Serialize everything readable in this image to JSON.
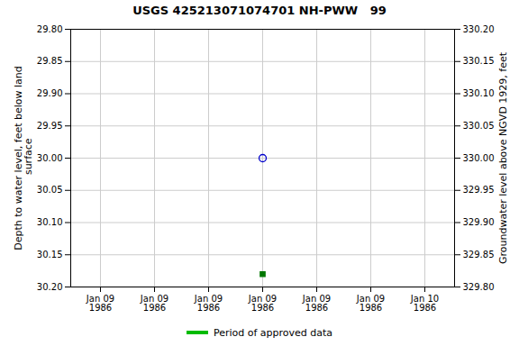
{
  "chart_data": {
    "type": "scatter",
    "title": "USGS 425213071074701 NH-PWW   99",
    "y_label": "Depth to water level, feet below land\n surface",
    "y2_label": "Groundwater level above NGVD 1929, feet",
    "categories": [
      "Jan 09\n1986",
      "Jan 09\n1986",
      "Jan 09\n1986",
      "Jan 09\n1986",
      "Jan 09\n1986",
      "Jan 09\n1986",
      "Jan 10\n1986"
    ],
    "ylim": [
      30.2,
      29.8
    ],
    "yticks": [
      {
        "value": 29.8,
        "label": "29.80"
      },
      {
        "value": 29.85,
        "label": "29.85"
      },
      {
        "value": 29.9,
        "label": "29.90"
      },
      {
        "value": 29.95,
        "label": "29.95"
      },
      {
        "value": 30.0,
        "label": "30.00"
      },
      {
        "value": 30.05,
        "label": "30.05"
      },
      {
        "value": 30.1,
        "label": "30.10"
      },
      {
        "value": 30.15,
        "label": "30.15"
      },
      {
        "value": 30.2,
        "label": "30.20"
      }
    ],
    "y2lim": [
      329.8,
      330.2
    ],
    "y2ticks": [
      {
        "value": 329.8,
        "label": "329.80"
      },
      {
        "value": 329.85,
        "label": "329.85"
      },
      {
        "value": 329.9,
        "label": "329.90"
      },
      {
        "value": 329.95,
        "label": "329.95"
      },
      {
        "value": 330.0,
        "label": "330.00"
      },
      {
        "value": 330.05,
        "label": "330.05"
      },
      {
        "value": 330.1,
        "label": "330.10"
      },
      {
        "value": 330.15,
        "label": "330.15"
      },
      {
        "value": 330.2,
        "label": "330.20"
      }
    ],
    "grid": true,
    "legend": "bottom",
    "series": [
      {
        "color": "#0000cc",
        "marker": "open_circle",
        "values": [
          null,
          null,
          null,
          30.0,
          null,
          null,
          null
        ]
      },
      {
        "color": "#007700",
        "marker": "square",
        "values": [
          null,
          null,
          null,
          30.18,
          null,
          null,
          null
        ]
      },
      {
        "name": "Period of approved data",
        "color": "#00bb00",
        "type": "line",
        "values": [
          null,
          null,
          null,
          null,
          null,
          null,
          null
        ]
      }
    ]
  }
}
